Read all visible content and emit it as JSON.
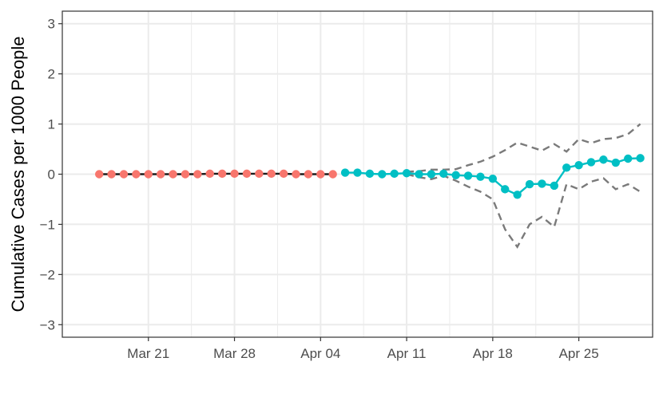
{
  "chart_data": {
    "type": "line",
    "xlabel": "",
    "ylabel": "Cumulative Cases per 1000 People",
    "ylim": [
      -3.25,
      3.25
    ],
    "xlim": [
      "2020-03-14",
      "2020-05-01"
    ],
    "y_ticks": [
      "−3",
      "−2",
      "−1",
      "0",
      "1",
      "2",
      "3"
    ],
    "y_tick_values": [
      -3,
      -2,
      -1,
      0,
      1,
      2,
      3
    ],
    "x_ticks": [
      "Mar 21",
      "Mar 28",
      "Apr 04",
      "Apr 11",
      "Apr 18",
      "Apr 25"
    ],
    "x_tick_dates": [
      "2020-03-21",
      "2020-03-28",
      "2020-04-04",
      "2020-04-11",
      "2020-04-18",
      "2020-04-25"
    ],
    "grid": true,
    "legend": "none",
    "colors": {
      "pre": "#F8766D",
      "post": "#00BFC4",
      "line": "#1a1a1a",
      "band": "#7a7a7a",
      "grid": "#ebebeb",
      "frame": "#333333"
    },
    "series": [
      {
        "color_key": "pre",
        "x": [
          "2020-03-17",
          "2020-03-18",
          "2020-03-19",
          "2020-03-20",
          "2020-03-21",
          "2020-03-22",
          "2020-03-23",
          "2020-03-24",
          "2020-03-25",
          "2020-03-26",
          "2020-03-27",
          "2020-03-28",
          "2020-03-29",
          "2020-03-30",
          "2020-03-31",
          "2020-04-01",
          "2020-04-02",
          "2020-04-03",
          "2020-04-04",
          "2020-04-05"
        ],
        "values": [
          0.0,
          0.0,
          0.0,
          0.0,
          0.0,
          0.0,
          0.0,
          0.0,
          0.0,
          0.01,
          0.01,
          0.01,
          0.01,
          0.01,
          0.01,
          0.01,
          0.0,
          0.0,
          0.0,
          0.0
        ]
      },
      {
        "color_key": "post",
        "x": [
          "2020-04-06",
          "2020-04-07",
          "2020-04-08",
          "2020-04-09",
          "2020-04-10",
          "2020-04-11",
          "2020-04-12",
          "2020-04-13",
          "2020-04-14",
          "2020-04-15",
          "2020-04-16",
          "2020-04-17",
          "2020-04-18",
          "2020-04-19",
          "2020-04-20",
          "2020-04-21",
          "2020-04-22",
          "2020-04-23",
          "2020-04-24",
          "2020-04-25",
          "2020-04-26",
          "2020-04-27",
          "2020-04-28",
          "2020-04-29",
          "2020-04-30"
        ],
        "values": [
          0.03,
          0.03,
          0.01,
          0.0,
          0.01,
          0.02,
          0.0,
          0.0,
          0.01,
          -0.02,
          -0.03,
          -0.05,
          -0.09,
          -0.3,
          -0.41,
          -0.2,
          -0.19,
          -0.23,
          0.13,
          0.18,
          0.24,
          0.29,
          0.23,
          0.31,
          0.32
        ]
      }
    ],
    "band": {
      "x": [
        "2020-04-11",
        "2020-04-12",
        "2020-04-13",
        "2020-04-14",
        "2020-04-15",
        "2020-04-16",
        "2020-04-17",
        "2020-04-18",
        "2020-04-19",
        "2020-04-20",
        "2020-04-21",
        "2020-04-22",
        "2020-04-23",
        "2020-04-24",
        "2020-04-25",
        "2020-04-26",
        "2020-04-27",
        "2020-04-28",
        "2020-04-29",
        "2020-04-30"
      ],
      "upper": [
        0.05,
        0.06,
        0.09,
        0.09,
        0.1,
        0.18,
        0.25,
        0.35,
        0.48,
        0.63,
        0.55,
        0.47,
        0.6,
        0.45,
        0.7,
        0.62,
        0.7,
        0.72,
        0.8,
        1.0
      ],
      "lower": [
        0.0,
        -0.06,
        -0.1,
        -0.03,
        -0.13,
        -0.25,
        -0.35,
        -0.5,
        -1.1,
        -1.45,
        -1.0,
        -0.85,
        -1.05,
        -0.2,
        -0.3,
        -0.15,
        -0.08,
        -0.3,
        -0.2,
        -0.35
      ]
    }
  }
}
